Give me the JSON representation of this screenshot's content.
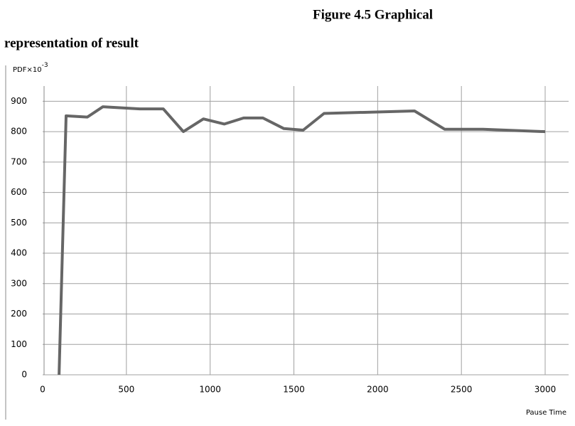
{
  "chart_data": {
    "type": "line",
    "title": [
      "Figure 4.5 Graphical",
      "representation of result"
    ],
    "ylabel": "PDF×10",
    "ylabel_exponent": "-3",
    "xlabel": "Pause Time",
    "x": [
      98,
      140,
      267,
      360,
      580,
      720,
      840,
      960,
      1085,
      1200,
      1315,
      1440,
      1555,
      1680,
      2220,
      2400,
      2630,
      3000
    ],
    "series": [
      {
        "color": "#666666",
        "values": [
          0,
          852,
          848,
          882,
          875,
          875,
          800,
          842,
          825,
          845,
          845,
          810,
          805,
          860,
          868,
          808,
          808,
          800
        ]
      }
    ],
    "xlim": [
      0,
      3140
    ],
    "xticks": [
      0,
      500,
      1000,
      1500,
      2000,
      2500,
      3000
    ],
    "ylim": [
      0,
      950
    ],
    "yticks": [
      0,
      100,
      200,
      300,
      400,
      500,
      600,
      700,
      800,
      900
    ],
    "grid": true
  }
}
